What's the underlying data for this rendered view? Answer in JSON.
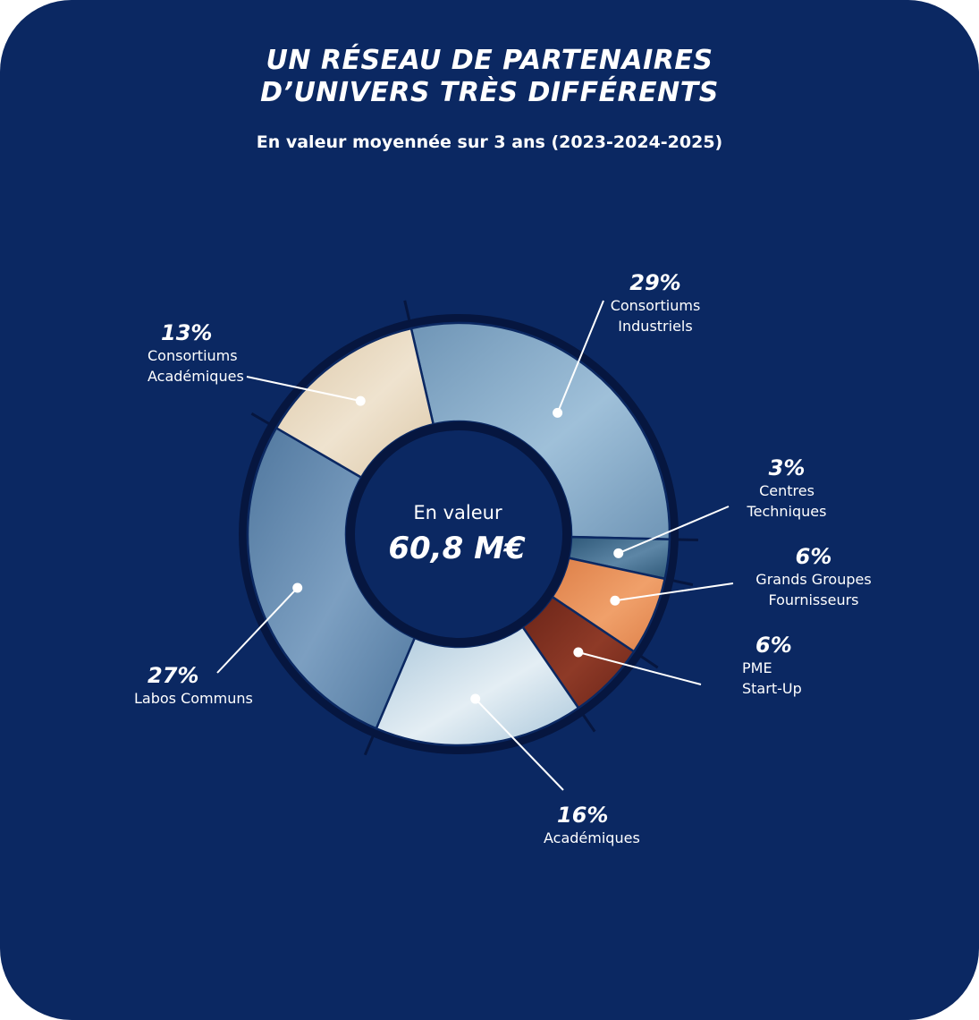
{
  "header": {
    "title_line1": "UN RÉSEAU DE PARTENAIRES",
    "title_line2": "D’UNIVERS TRÈS DIFFÉRENTS",
    "subtitle": "En valeur moyennée sur 3 ans (2023-2024-2025)"
  },
  "center": {
    "label": "En valeur",
    "value": "60,8 M€"
  },
  "colors": {
    "background": "#0b2862",
    "ring": "#06163f",
    "text": "#ffffff"
  },
  "chart_data": {
    "type": "pie",
    "style": "donut",
    "title": "UN RÉSEAU DE PARTENAIRES D’UNIVERS TRÈS DIFFÉRENTS",
    "subtitle": "En valeur moyennée sur 3 ans (2023-2024-2025)",
    "total": "60,8 M€",
    "slices": [
      {
        "name": "Consortiums Industriels",
        "label_lines": [
          "Consortiums",
          "Industriels"
        ],
        "value": 29,
        "pct_label": "29%",
        "color": "#6f95b6",
        "color2": "#9fc0d9"
      },
      {
        "name": "Centres Techniques",
        "label_lines": [
          "Centres",
          "Techniques"
        ],
        "value": 3,
        "pct_label": "3%",
        "color": "#2e5878",
        "color2": "#5d86a6"
      },
      {
        "name": "Grands Groupes Fournisseurs",
        "label_lines": [
          "Grands Groupes",
          "Fournisseurs"
        ],
        "value": 6,
        "pct_label": "6%",
        "color": "#dd7f48",
        "color2": "#f0a06a"
      },
      {
        "name": "PME Start-Up",
        "label_lines": [
          "PME",
          "Start-Up"
        ],
        "value": 6,
        "pct_label": "6%",
        "color": "#6b2418",
        "color2": "#8e3a27"
      },
      {
        "name": "Académiques",
        "label_lines": [
          "Académiques"
        ],
        "value": 16,
        "pct_label": "16%",
        "color": "#a9c6da",
        "color2": "#e4eef4"
      },
      {
        "name": "Labos Communs",
        "label_lines": [
          "Labos Communs"
        ],
        "value": 27,
        "pct_label": "27%",
        "color": "#50779e",
        "color2": "#7c9fc1"
      },
      {
        "name": "Consortiums Académiques",
        "label_lines": [
          "Consortiums",
          "Académiques"
        ],
        "value": 13,
        "pct_label": "13%",
        "color": "#dcc8a8",
        "color2": "#efe3cf"
      }
    ]
  }
}
